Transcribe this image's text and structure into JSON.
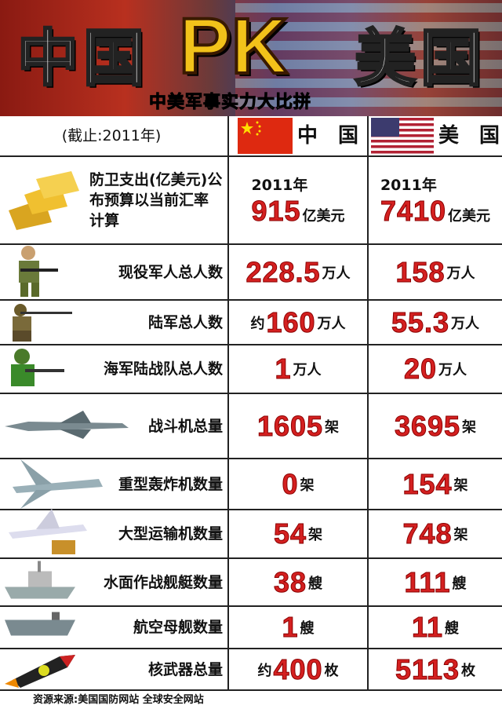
{
  "banner": {
    "left": "中国",
    "pk": "PK",
    "right": "美国",
    "subtitle": "中美军事实力大比拼"
  },
  "header": {
    "as_of": "(截止:2011年)",
    "china": "中　国",
    "usa": "美　国"
  },
  "rows": [
    {
      "label": "防卫支出(亿美元)公布预算以当前汇率计算",
      "icon": "gold-bars-icon",
      "china": {
        "year": "2011年",
        "value": "915",
        "unit": "亿美元"
      },
      "usa": {
        "year": "2011年",
        "value": "7410",
        "unit": "亿美元"
      }
    },
    {
      "label": "现役军人总人数",
      "icon": "soldier-icon",
      "china": {
        "value": "228.5",
        "unit": "万人"
      },
      "usa": {
        "value": "158",
        "unit": "万人"
      }
    },
    {
      "label": "陆军总人数",
      "icon": "rifleman-icon",
      "china": {
        "prefix": "约",
        "value": "160",
        "unit": "万人"
      },
      "usa": {
        "value": "55.3",
        "unit": "万人"
      }
    },
    {
      "label": "海军陆战队总人数",
      "icon": "marine-icon",
      "china": {
        "value": "1",
        "unit": "万人"
      },
      "usa": {
        "value": "20",
        "unit": "万人"
      }
    },
    {
      "label": "战斗机总量",
      "icon": "fighter-jet-icon",
      "china": {
        "value": "1605",
        "unit": "架"
      },
      "usa": {
        "value": "3695",
        "unit": "架"
      }
    },
    {
      "label": "重型轰炸机数量",
      "icon": "bomber-icon",
      "china": {
        "value": "0",
        "unit": "架"
      },
      "usa": {
        "value": "154",
        "unit": "架"
      }
    },
    {
      "label": "大型运输机数量",
      "icon": "transport-plane-icon",
      "china": {
        "value": "54",
        "unit": "架"
      },
      "usa": {
        "value": "748",
        "unit": "架"
      }
    },
    {
      "label": "水面作战舰艇数量",
      "icon": "warship-icon",
      "china": {
        "value": "38",
        "unit": "艘"
      },
      "usa": {
        "value": "111",
        "unit": "艘"
      }
    },
    {
      "label": "航空母舰数量",
      "icon": "aircraft-carrier-icon",
      "china": {
        "value": "1",
        "unit": "艘"
      },
      "usa": {
        "value": "11",
        "unit": "艘"
      }
    },
    {
      "label": "核武器总量",
      "icon": "nuclear-missile-icon",
      "china": {
        "prefix": "约",
        "value": "400",
        "unit": "枚"
      },
      "usa": {
        "value": "5113",
        "unit": "枚"
      }
    }
  ],
  "footer": "资源来源:美国国防网站 全球安全网站",
  "colors": {
    "value_red": "#d42020",
    "china_flag": "#de2910",
    "pk_gold": "#f2c21a"
  }
}
